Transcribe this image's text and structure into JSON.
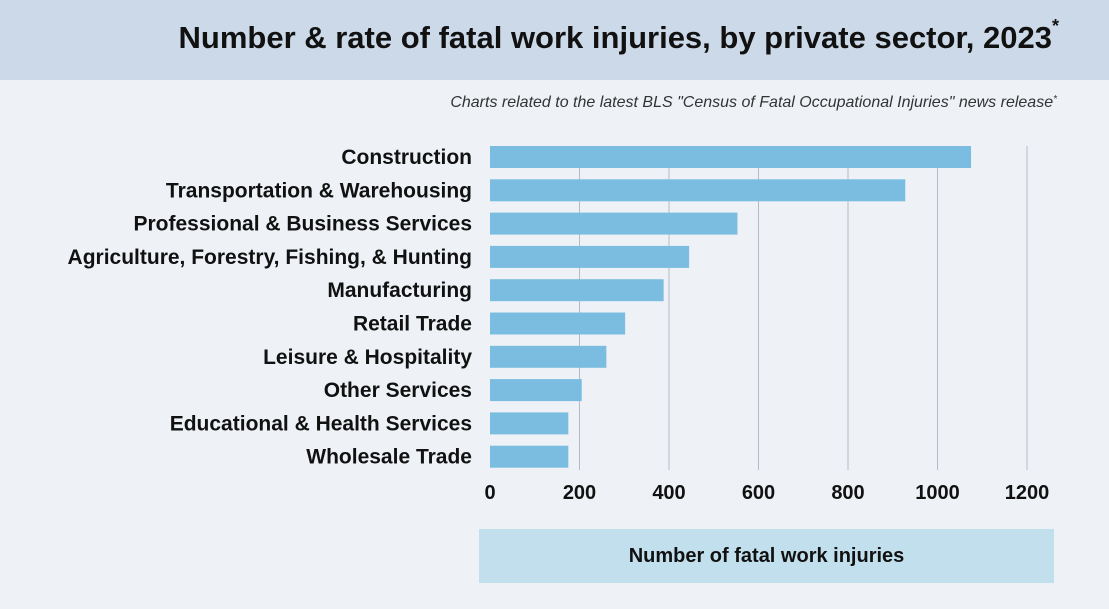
{
  "header": {
    "title": "Number & rate of fatal work injuries, by private sector, 2023",
    "title_mark": "*",
    "subtitle": "Charts related to the latest BLS \"Census of Fatal Occupational Injuries\" news release",
    "subtitle_mark": "*"
  },
  "colors": {
    "bar": "#7bbde0",
    "grid": "#b5bcc4",
    "title_band": "#ccd9e8",
    "background": "#eef2f7",
    "xlabel_box": "#c2dfee"
  },
  "chart_data": {
    "type": "bar",
    "orientation": "horizontal",
    "title": "Number & rate of fatal work injuries, by private sector, 2023*",
    "xlabel": "Number of fatal work injuries",
    "ylabel": "",
    "categories": [
      "Construction",
      "Transportation & Warehousing",
      "Professional & Business Services",
      "Agriculture, Forestry, Fishing, & Hunting",
      "Manufacturing",
      "Retail Trade",
      "Leisure & Hospitality",
      "Other Services",
      "Educational & Health Services",
      "Wholesale Trade"
    ],
    "values": [
      1075,
      928,
      553,
      445,
      388,
      302,
      260,
      205,
      175,
      175
    ],
    "xlim": [
      0,
      1200
    ],
    "xticks": [
      0,
      200,
      400,
      600,
      800,
      1000,
      1200
    ],
    "grid": true
  }
}
